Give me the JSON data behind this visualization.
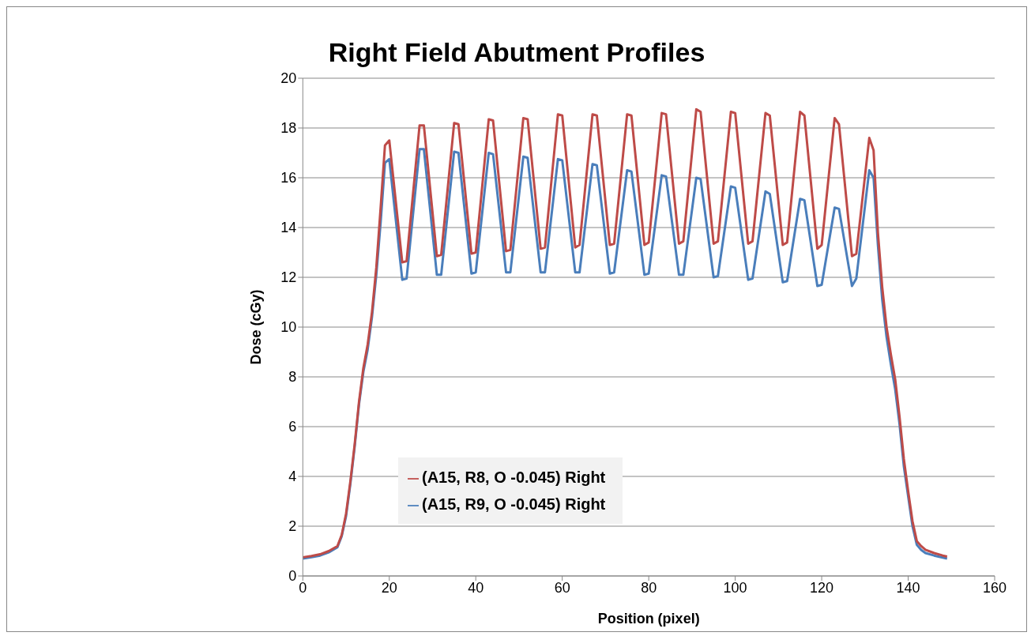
{
  "chart_data": {
    "type": "line",
    "title": "Right Field Abutment Profiles",
    "xlabel": "Position (pixel)",
    "ylabel": "Dose (cGy)",
    "x": [
      0,
      2,
      4,
      6,
      8,
      9,
      10,
      11,
      12,
      13,
      14,
      15,
      16,
      17,
      18,
      19,
      20,
      23,
      24,
      27,
      28,
      31,
      32,
      35,
      36,
      39,
      40,
      43,
      44,
      47,
      48,
      51,
      52,
      55,
      56,
      59,
      60,
      63,
      64,
      67,
      68,
      71,
      72,
      75,
      76,
      79,
      80,
      83,
      84,
      87,
      88,
      91,
      92,
      95,
      96,
      99,
      100,
      103,
      104,
      107,
      108,
      111,
      112,
      115,
      116,
      119,
      120,
      123,
      124,
      127,
      128,
      131,
      132,
      133,
      134,
      135,
      136,
      137,
      138,
      139,
      140,
      141,
      142,
      143,
      144,
      146,
      148,
      149
    ],
    "series": [
      {
        "name": "(A15, R9, O -0.045) Right",
        "color": "#4a7ebb",
        "values": [
          0.7,
          0.75,
          0.82,
          0.95,
          1.15,
          1.6,
          2.4,
          3.7,
          5.2,
          6.9,
          8.2,
          9.1,
          10.4,
          12.1,
          14.2,
          16.6,
          16.75,
          11.9,
          11.95,
          17.15,
          17.15,
          12.1,
          12.1,
          17.05,
          17.0,
          12.15,
          12.2,
          17.0,
          16.95,
          12.2,
          12.2,
          16.85,
          16.8,
          12.2,
          12.2,
          16.75,
          16.7,
          12.2,
          12.2,
          16.55,
          16.5,
          12.15,
          12.2,
          16.3,
          16.25,
          12.1,
          12.15,
          16.1,
          16.05,
          12.1,
          12.1,
          16.0,
          15.95,
          12.0,
          12.05,
          15.65,
          15.6,
          11.9,
          11.95,
          15.45,
          15.35,
          11.8,
          11.85,
          15.15,
          15.1,
          11.65,
          11.7,
          14.8,
          14.75,
          11.65,
          11.95,
          16.3,
          16.0,
          13.3,
          11.1,
          9.6,
          8.5,
          7.5,
          6.1,
          4.4,
          3.2,
          2.0,
          1.25,
          1.05,
          0.92,
          0.82,
          0.74,
          0.7
        ]
      },
      {
        "name": "(A15, R8, O -0.045) Right",
        "color": "#be4b48",
        "values": [
          0.75,
          0.8,
          0.87,
          1.0,
          1.2,
          1.65,
          2.5,
          3.8,
          5.3,
          7.0,
          8.35,
          9.3,
          10.6,
          12.4,
          14.8,
          17.3,
          17.5,
          12.6,
          12.65,
          18.1,
          18.1,
          12.85,
          12.9,
          18.2,
          18.15,
          12.95,
          13.0,
          18.35,
          18.3,
          13.05,
          13.1,
          18.4,
          18.35,
          13.15,
          13.2,
          18.55,
          18.5,
          13.2,
          13.3,
          18.55,
          18.5,
          13.3,
          13.35,
          18.55,
          18.5,
          13.3,
          13.4,
          18.6,
          18.55,
          13.35,
          13.45,
          18.75,
          18.65,
          13.35,
          13.45,
          18.65,
          18.6,
          13.35,
          13.45,
          18.6,
          18.5,
          13.3,
          13.4,
          18.65,
          18.5,
          13.15,
          13.3,
          18.4,
          18.15,
          12.85,
          12.95,
          17.6,
          17.1,
          13.8,
          11.6,
          10.0,
          8.9,
          7.9,
          6.4,
          4.7,
          3.4,
          2.2,
          1.4,
          1.2,
          1.05,
          0.92,
          0.82,
          0.78
        ]
      }
    ],
    "xlim": [
      0,
      160
    ],
    "xticks": [
      0,
      20,
      40,
      60,
      80,
      100,
      120,
      140,
      160
    ],
    "ylim": [
      0,
      20
    ],
    "yticks": [
      0,
      2,
      4,
      6,
      8,
      10,
      12,
      14,
      16,
      18,
      20
    ],
    "grid": "y",
    "legend": "bottom",
    "marker": "none",
    "line_style": "solid"
  }
}
